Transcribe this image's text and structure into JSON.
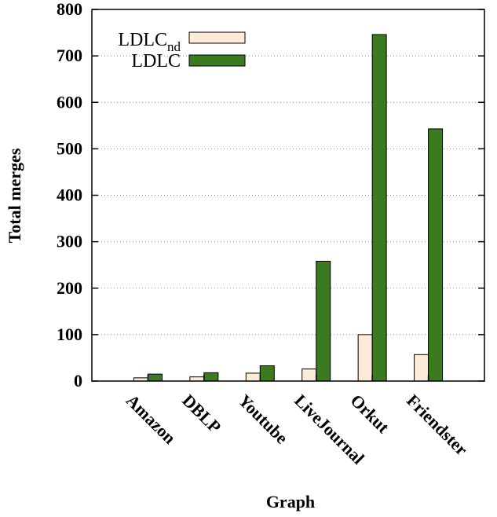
{
  "chart_data": {
    "type": "bar",
    "xlabel": "Graph",
    "ylabel": "Total merges",
    "ylim": [
      0,
      800
    ],
    "yticks": [
      0,
      100,
      200,
      300,
      400,
      500,
      600,
      700,
      800
    ],
    "grid": true,
    "legend_position": "top-left",
    "categories": [
      "Amazon",
      "DBLP",
      "Youtube",
      "LiveJournal",
      "Orkut",
      "Friendster"
    ],
    "series": [
      {
        "name": "LDLC",
        "name_sub": "nd",
        "color": "#fcebd9",
        "values": [
          7,
          9,
          17,
          26,
          100,
          57
        ]
      },
      {
        "name": "LDLC",
        "color": "#3b7a1e",
        "values": [
          15,
          18,
          33,
          258,
          746,
          543
        ]
      }
    ]
  }
}
